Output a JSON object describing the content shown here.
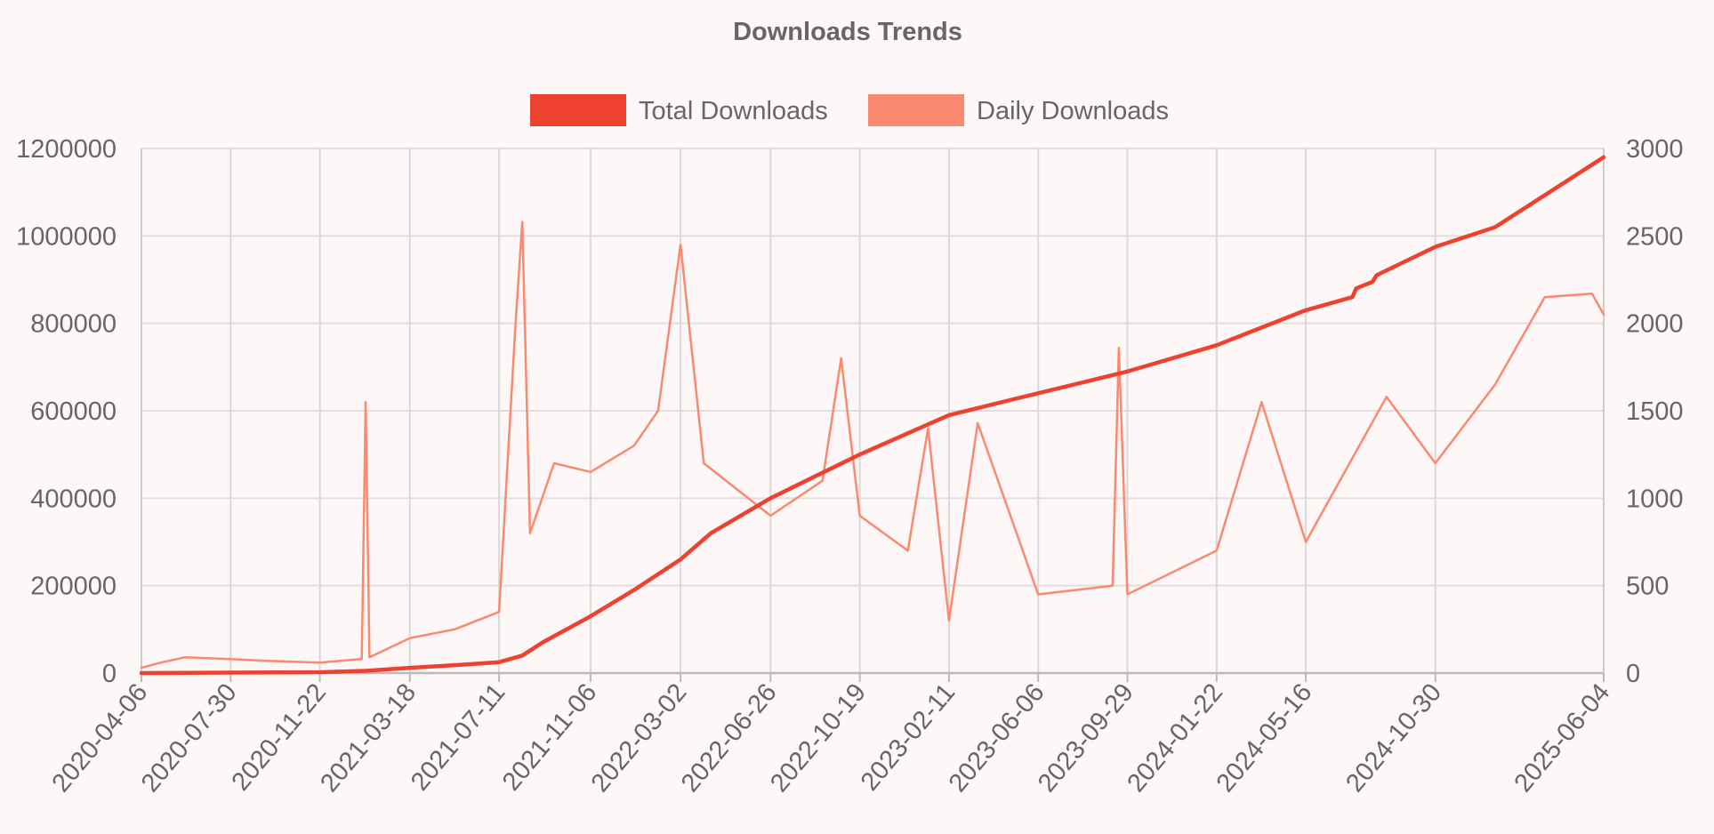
{
  "chart_data": {
    "type": "line",
    "title": "Downloads Trends",
    "legend_position": "top-center",
    "grid": true,
    "x_axis": {
      "type": "date",
      "range": [
        "2020-04-06",
        "2025-06-04"
      ],
      "tick_labels": [
        "2020-04-06",
        "2020-07-30",
        "2020-11-22",
        "2021-03-18",
        "2021-07-11",
        "2021-11-06",
        "2022-03-02",
        "2022-06-26",
        "2022-10-19",
        "2023-02-11",
        "2023-06-06",
        "2023-09-29",
        "2024-01-22",
        "2024-05-16",
        "2024-10-30",
        "2025-06-04"
      ]
    },
    "y_axis_left": {
      "range": [
        0,
        1200000
      ],
      "ticks": [
        0,
        200000,
        400000,
        600000,
        800000,
        1000000,
        1200000
      ],
      "tick_labels": [
        "0",
        "200000",
        "400000",
        "600000",
        "800000",
        "1000000",
        "1200000"
      ]
    },
    "y_axis_right": {
      "range": [
        0,
        3000
      ],
      "ticks": [
        0,
        500,
        1000,
        1500,
        2000,
        2500,
        3000
      ],
      "tick_labels": [
        "0",
        "500",
        "1000",
        "1500",
        "2000",
        "2500",
        "3000"
      ]
    },
    "series": [
      {
        "name": "Total Downloads",
        "axis": "left",
        "color": "#ef4130",
        "points": [
          [
            "2020-04-06",
            0
          ],
          [
            "2020-07-30",
            1000
          ],
          [
            "2020-11-22",
            2000
          ],
          [
            "2021-01-20",
            5000
          ],
          [
            "2021-03-18",
            12000
          ],
          [
            "2021-05-15",
            18000
          ],
          [
            "2021-07-11",
            25000
          ],
          [
            "2021-08-10",
            40000
          ],
          [
            "2021-09-05",
            70000
          ],
          [
            "2021-11-06",
            130000
          ],
          [
            "2022-01-01",
            190000
          ],
          [
            "2022-03-02",
            260000
          ],
          [
            "2022-04-10",
            320000
          ],
          [
            "2022-06-26",
            400000
          ],
          [
            "2022-10-19",
            500000
          ],
          [
            "2023-02-11",
            590000
          ],
          [
            "2023-06-06",
            640000
          ],
          [
            "2023-09-29",
            690000
          ],
          [
            "2024-01-22",
            750000
          ],
          [
            "2024-05-16",
            830000
          ],
          [
            "2024-07-15",
            860000
          ],
          [
            "2024-07-20",
            880000
          ],
          [
            "2024-08-10",
            895000
          ],
          [
            "2024-08-15",
            910000
          ],
          [
            "2024-10-30",
            975000
          ],
          [
            "2025-01-15",
            1020000
          ],
          [
            "2025-06-04",
            1180000
          ]
        ]
      },
      {
        "name": "Daily Downloads",
        "axis": "right",
        "color": "#fb8970",
        "points": [
          [
            "2020-04-06",
            30
          ],
          [
            "2020-05-01",
            60
          ],
          [
            "2020-06-01",
            90
          ],
          [
            "2020-07-30",
            80
          ],
          [
            "2020-09-15",
            70
          ],
          [
            "2020-11-22",
            60
          ],
          [
            "2021-01-15",
            80
          ],
          [
            "2021-01-20",
            1550
          ],
          [
            "2021-01-25",
            90
          ],
          [
            "2021-03-18",
            200
          ],
          [
            "2021-05-15",
            250
          ],
          [
            "2021-07-11",
            350
          ],
          [
            "2021-08-01",
            1980
          ],
          [
            "2021-08-10",
            2580
          ],
          [
            "2021-08-20",
            800
          ],
          [
            "2021-09-20",
            1200
          ],
          [
            "2021-11-06",
            1150
          ],
          [
            "2022-01-01",
            1300
          ],
          [
            "2022-02-01",
            1500
          ],
          [
            "2022-03-02",
            2450
          ],
          [
            "2022-04-01",
            1200
          ],
          [
            "2022-06-26",
            900
          ],
          [
            "2022-09-01",
            1100
          ],
          [
            "2022-09-25",
            1800
          ],
          [
            "2022-10-19",
            900
          ],
          [
            "2022-12-20",
            700
          ],
          [
            "2023-01-15",
            1400
          ],
          [
            "2023-02-11",
            300
          ],
          [
            "2023-03-20",
            1430
          ],
          [
            "2023-06-06",
            450
          ],
          [
            "2023-09-10",
            500
          ],
          [
            "2023-09-18",
            1860
          ],
          [
            "2023-09-29",
            450
          ],
          [
            "2024-01-22",
            700
          ],
          [
            "2024-03-20",
            1550
          ],
          [
            "2024-05-16",
            750
          ],
          [
            "2024-08-28",
            1580
          ],
          [
            "2024-10-30",
            1200
          ],
          [
            "2025-01-15",
            1650
          ],
          [
            "2025-03-20",
            2150
          ],
          [
            "2025-05-20",
            2170
          ],
          [
            "2025-06-04",
            2050
          ]
        ]
      }
    ]
  }
}
